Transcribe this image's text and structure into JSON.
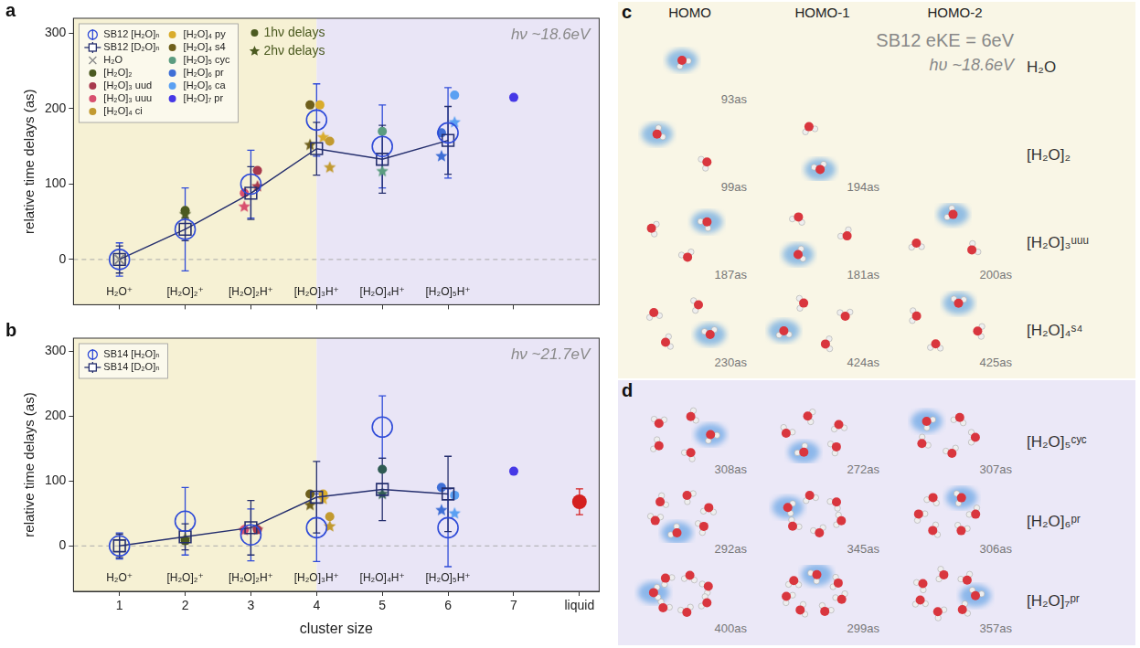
{
  "chart_data": [
    {
      "panel": "a",
      "type": "scatter",
      "y_label": "relative time delays (as)",
      "annotation": "hν ~18.6eV",
      "xlim": [
        0.3,
        8.3
      ],
      "xticks": [
        1,
        2,
        3,
        4,
        5,
        6,
        7
      ],
      "ylim": [
        -60,
        320
      ],
      "yticks": [
        0,
        100,
        200,
        300
      ],
      "grid": false,
      "tick_labels": "y",
      "legend": "upper left",
      "regions": [
        {
          "from": 0.3,
          "to": 4,
          "color": "#f6f1d4"
        },
        {
          "from": 4,
          "to": 8.3,
          "color": "#e9e5f6"
        }
      ],
      "reference_lines": [
        {
          "y": 0,
          "line_style": "dashed"
        }
      ],
      "category_labels": [
        {
          "x": 1,
          "label": "H₂O⁺"
        },
        {
          "x": 2,
          "label": "[H₂O]₂⁺"
        },
        {
          "x": 3,
          "label": "[H₂O]₂H⁺"
        },
        {
          "x": 4,
          "label": "[H₂O]₃H⁺"
        },
        {
          "x": 5,
          "label": "[H₂O]₄H⁺"
        },
        {
          "x": 6,
          "label": "[H₂O]₅H⁺"
        }
      ],
      "marker_legend": [
        {
          "label": "1hν delays",
          "marker": "circle"
        },
        {
          "label": "2hν delays",
          "marker": "star"
        }
      ],
      "series": [
        {
          "name": "SB12 [H₂O]ₙ",
          "color": "#2f4bd8",
          "marker": "circle_open",
          "x": [
            1,
            2,
            3,
            4,
            5,
            6
          ],
          "values": [
            0,
            40,
            100,
            185,
            150,
            168
          ],
          "errors": [
            22,
            55,
            45,
            48,
            55,
            60
          ]
        },
        {
          "name": "SB12 [D₂O]ₙ",
          "type": "line",
          "color": "#252f6e",
          "marker": "square_open",
          "x": [
            1,
            2,
            3,
            4,
            5,
            6
          ],
          "values": [
            0,
            40,
            88,
            147,
            133,
            158
          ],
          "errors": [
            18,
            15,
            35,
            35,
            45,
            45
          ]
        },
        {
          "name": "H₂O",
          "color": "#8a8a8a",
          "x": [
            1
          ],
          "values": [
            0
          ],
          "markers": [
            "cross"
          ]
        },
        {
          "name": "[H₂O]₂",
          "color": "#4b5a20",
          "x": [
            2,
            2
          ],
          "values": [
            65,
            60
          ],
          "markers": [
            "circle",
            "star"
          ]
        },
        {
          "name": "[H₂O]₃ uud",
          "color": "#a83a4d",
          "x": [
            3.1,
            3.1
          ],
          "values": [
            118,
            97
          ],
          "markers": [
            "circle",
            "star"
          ]
        },
        {
          "name": "[H₂O]₃ uuu",
          "color": "#d8506e",
          "x": [
            2.9,
            2.9
          ],
          "values": [
            88,
            70
          ],
          "markers": [
            "circle",
            "star"
          ]
        },
        {
          "name": "[H₂O]₄ ci",
          "color": "#c29a30",
          "x": [
            4.2,
            4.2
          ],
          "values": [
            157,
            122
          ],
          "markers": [
            "circle",
            "star"
          ]
        },
        {
          "name": "[H₂O]₄ py",
          "color": "#d9ac2c",
          "x": [
            4.05,
            4.1
          ],
          "values": [
            205,
            162
          ],
          "markers": [
            "circle",
            "star"
          ]
        },
        {
          "name": "[H₂O]₄ s4",
          "color": "#6e5f1c",
          "x": [
            3.9,
            3.9
          ],
          "values": [
            205,
            152
          ],
          "markers": [
            "circle",
            "star"
          ]
        },
        {
          "name": "[H₂O]₅ cyc",
          "color": "#5b9c80",
          "x": [
            5,
            5
          ],
          "values": [
            170,
            117
          ],
          "markers": [
            "circle",
            "star"
          ]
        },
        {
          "name": "[H₂O]₆ pr",
          "color": "#3f6fd6",
          "x": [
            5.9,
            5.9
          ],
          "values": [
            168,
            137
          ],
          "markers": [
            "circle",
            "star"
          ]
        },
        {
          "name": "[H₂O]₆ ca",
          "color": "#5aa0f2",
          "x": [
            6.1,
            6.1
          ],
          "values": [
            218,
            182
          ],
          "markers": [
            "circle",
            "star"
          ]
        },
        {
          "name": "[H₂O]₇ pr",
          "color": "#4638e6",
          "x": [
            7
          ],
          "values": [
            215
          ],
          "markers": [
            "circle"
          ]
        }
      ]
    },
    {
      "panel": "b",
      "type": "scatter",
      "y_label": "relative time delays (as)",
      "x_label": "cluster size",
      "annotation": "hν ~21.7eV",
      "xlim": [
        0.3,
        8.3
      ],
      "xticks": [
        1,
        2,
        3,
        4,
        5,
        6,
        7,
        {
          "value": 8,
          "label": "liquid"
        }
      ],
      "ylim": [
        -70,
        320
      ],
      "yticks": [
        0,
        100,
        200,
        300
      ],
      "grid": false,
      "legend": "upper left",
      "regions": [
        {
          "from": 0.3,
          "to": 4,
          "color": "#f6f1d4"
        },
        {
          "from": 4,
          "to": 8.3,
          "color": "#e9e5f6"
        }
      ],
      "reference_lines": [
        {
          "y": 0,
          "line_style": "dashed"
        }
      ],
      "category_labels": [
        {
          "x": 1,
          "label": "H₂O⁺"
        },
        {
          "x": 2,
          "label": "[H₂O]₂⁺"
        },
        {
          "x": 3,
          "label": "[H₂O]₂H⁺"
        },
        {
          "x": 4,
          "label": "[H₂O]₃H⁺"
        },
        {
          "x": 5,
          "label": "[H₂O]₄H⁺"
        },
        {
          "x": 6,
          "label": "[H₂O]₅H⁺"
        }
      ],
      "series": [
        {
          "name": "SB14 [H₂O]ₙ",
          "color": "#2f4bd8",
          "marker": "circle_open",
          "x": [
            1,
            2,
            3,
            4,
            5,
            6
          ],
          "values": [
            0,
            38,
            17,
            28,
            183,
            28
          ],
          "errors": [
            20,
            52,
            40,
            52,
            48,
            60
          ]
        },
        {
          "name": "SB14 [D₂O]ₙ",
          "type": "line",
          "color": "#252f6e",
          "marker": "square_open",
          "x": [
            1,
            2,
            3,
            4,
            5,
            6
          ],
          "values": [
            0,
            14,
            28,
            75,
            87,
            80
          ],
          "errors": [
            18,
            20,
            42,
            55,
            48,
            58
          ]
        },
        {
          "color": "#4b5a20",
          "x": [
            2,
            2
          ],
          "values": [
            8,
            10
          ],
          "markers": [
            "circle",
            "star"
          ]
        },
        {
          "color": "#a83a4d",
          "x": [
            3.1,
            3.1
          ],
          "values": [
            25,
            25
          ],
          "markers": [
            "circle",
            "star"
          ]
        },
        {
          "color": "#d8506e",
          "x": [
            2.9,
            2.9
          ],
          "values": [
            25,
            24
          ],
          "markers": [
            "circle",
            "star"
          ]
        },
        {
          "color": "#c29a30",
          "x": [
            4.2,
            4.2
          ],
          "values": [
            45,
            30
          ],
          "markers": [
            "circle",
            "star"
          ]
        },
        {
          "color": "#d9ac2c",
          "x": [
            4.1,
            4.1
          ],
          "values": [
            80,
            72
          ],
          "markers": [
            "circle",
            "star"
          ]
        },
        {
          "color": "#6e5f1c",
          "x": [
            3.9,
            3.9
          ],
          "values": [
            80,
            63
          ],
          "markers": [
            "circle",
            "star"
          ]
        },
        {
          "color": "#2e5a52",
          "x": [
            5,
            5
          ],
          "values": [
            118,
            80
          ],
          "markers": [
            "circle",
            "star"
          ]
        },
        {
          "color": "#3f6fd6",
          "x": [
            5.9,
            5.9
          ],
          "values": [
            90,
            55
          ],
          "markers": [
            "circle",
            "star"
          ]
        },
        {
          "color": "#5aa0f2",
          "x": [
            6.1,
            6.1
          ],
          "values": [
            78,
            50
          ],
          "markers": [
            "circle",
            "star"
          ]
        },
        {
          "color": "#4638e6",
          "x": [
            7
          ],
          "values": [
            115
          ],
          "markers": [
            "circle"
          ]
        },
        {
          "color": "#d42020",
          "x": [
            8
          ],
          "values": [
            68
          ],
          "errors": [
            20
          ],
          "markers": [
            "large_circle"
          ]
        }
      ]
    }
  ],
  "orbital_panels": [
    {
      "label": "c",
      "columns": [
        "HOMO",
        "HOMO-1",
        "HOMO-2"
      ],
      "notes": [
        "SB12 eKE = 6eV",
        "hυ ~18.6eV"
      ],
      "rows": [
        {
          "name": "H₂O",
          "delays": [
            "93as"
          ]
        },
        {
          "name": "[H₂O]₂",
          "delays": [
            "99as",
            "194as"
          ]
        },
        {
          "name": "[H₂O]₃ᵘᵘᵘ",
          "delays": [
            "187as",
            "181as",
            "200as"
          ]
        },
        {
          "name": "[H₂O]₄ˢ⁴",
          "delays": [
            "230as",
            "424as",
            "425as"
          ]
        }
      ]
    },
    {
      "label": "d",
      "rows": [
        {
          "name": "[H₂O]₅ᶜʸᶜ",
          "delays": [
            "308as",
            "272as",
            "307as"
          ]
        },
        {
          "name": "[H₂O]₆ᵖʳ",
          "delays": [
            "292as",
            "345as",
            "306as"
          ]
        },
        {
          "name": "[H₂O]₇ᵖʳ",
          "delays": [
            "400as",
            "299as",
            "357as"
          ]
        }
      ]
    }
  ]
}
